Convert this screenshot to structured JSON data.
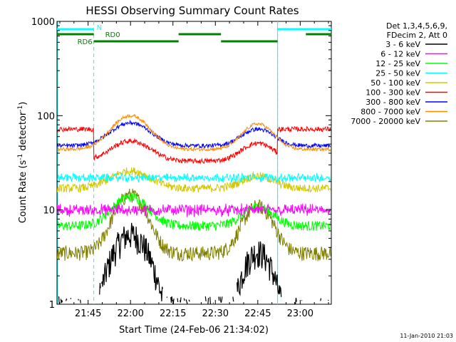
{
  "chart_data": {
    "type": "line",
    "title": "HESSI Observing Summary Count Rates",
    "xlabel": "Start Time (24-Feb-06 21:34:02)",
    "ylabel_parts": [
      "Count Rate (s",
      "-1",
      " detector",
      "-1",
      ")"
    ],
    "x_unit": "minutes of day",
    "xlim": [
      1294,
      1391
    ],
    "ylim": [
      1,
      1000
    ],
    "y_scale": "log",
    "x_ticks": [
      {
        "value": 1305,
        "label": "21:45"
      },
      {
        "value": 1320,
        "label": "22:00"
      },
      {
        "value": 1335,
        "label": "22:15"
      },
      {
        "value": 1350,
        "label": "22:30"
      },
      {
        "value": 1365,
        "label": "22:45"
      },
      {
        "value": 1380,
        "label": "23:00"
      }
    ],
    "y_ticks": [
      {
        "value": 1,
        "label": "1"
      },
      {
        "value": 10,
        "label": "10"
      },
      {
        "value": 100,
        "label": "100"
      },
      {
        "value": 1000,
        "label": "1000"
      }
    ],
    "legend_position": "right",
    "legend_header": [
      "Det 1,3,4,5,6,9,",
      "FDecim 2, Att 0"
    ],
    "series": [
      {
        "name": "3 - 6 keV",
        "color": "#000000"
      },
      {
        "name": "6 - 12 keV",
        "color": "#ff00ff"
      },
      {
        "name": "12 - 25 keV",
        "color": "#00ff00"
      },
      {
        "name": "25 - 50 keV",
        "color": "#00ffff"
      },
      {
        "name": "50 - 100 keV",
        "color": "#d4c800"
      },
      {
        "name": "100 - 300 keV",
        "color": "#ff0000"
      },
      {
        "name": "300 - 800 keV",
        "color": "#0000ff"
      },
      {
        "name": "800 - 7000 keV",
        "color": "#ff8c00"
      },
      {
        "name": "7000 - 20000 keV",
        "color": "#808000"
      }
    ],
    "flag_labels": {
      "n": "N",
      "rd0": "RD0",
      "rd6": "RD6"
    },
    "flag_colors": {
      "night": "#00ffff",
      "rd": "#008000"
    },
    "night_intervals": [
      [
        1294,
        1307
      ],
      [
        1372,
        1391
      ]
    ],
    "rd0_intervals": [
      [
        1294,
        1307
      ],
      [
        1337,
        1352
      ],
      [
        1382,
        1391
      ]
    ],
    "rd6_intervals": [
      [
        1307,
        1337
      ],
      [
        1352,
        1372
      ]
    ],
    "footer_timestamp": "11-Jan-2010 21:03"
  }
}
